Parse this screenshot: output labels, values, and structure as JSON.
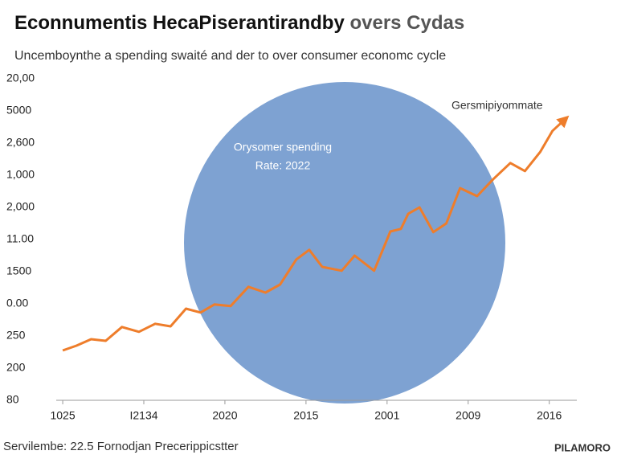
{
  "chart_data": {
    "type": "line",
    "title": "Econnumentis HecaPiserantirandby",
    "title_suffix": "overs Cydas",
    "subtitle": "Uncemboynthe a spending swaité and der to over consumer economc cycle",
    "annotation": "Gersmipiyommate",
    "circle_label": [
      "Orysomer spending",
      "Rate: 2022"
    ],
    "circle_color": "#7ea2d2",
    "source": "Servilembe: 22.5 Fornodjan Precerippicstter",
    "brand": "PILAMORO",
    "x": [
      0,
      0.17,
      0.35,
      0.53,
      0.73,
      0.94,
      1.14,
      1.33,
      1.52,
      1.7,
      1.87,
      2.07,
      2.29,
      2.5,
      2.68,
      2.88,
      3.04,
      3.2,
      3.44,
      3.6,
      3.84,
      4.04,
      4.17,
      4.26,
      4.4,
      4.57,
      4.73,
      4.9,
      5.11,
      5.31,
      5.52,
      5.7,
      5.89,
      6.04,
      6.19
    ],
    "series": [
      {
        "color": "#ee7d2b",
        "values": [
          1.55,
          1.7,
          1.9,
          1.85,
          2.28,
          2.13,
          2.38,
          2.3,
          2.85,
          2.73,
          2.98,
          2.93,
          3.53,
          3.35,
          3.6,
          4.38,
          4.68,
          4.15,
          4.03,
          4.5,
          4.03,
          5.25,
          5.33,
          5.8,
          6,
          5.23,
          5.5,
          6.6,
          6.35,
          6.88,
          7.38,
          7.13,
          7.73,
          8.38,
          8.73
        ]
      }
    ],
    "xlim": [
      -0.08,
      6.34
    ],
    "xticks": [
      {
        "value": 0,
        "label": "1025"
      },
      {
        "value": 1,
        "label": "I2134"
      },
      {
        "value": 2,
        "label": "2020"
      },
      {
        "value": 3,
        "label": "2015"
      },
      {
        "value": 4,
        "label": "2001"
      },
      {
        "value": 5,
        "label": "2009"
      },
      {
        "value": 6,
        "label": "2016"
      }
    ],
    "ylim": [
      0,
      10.3
    ],
    "yticks": [
      {
        "value": 0,
        "label": "80"
      },
      {
        "value": 1,
        "label": "200"
      },
      {
        "value": 2,
        "label": "250"
      },
      {
        "value": 3,
        "label": "0.00"
      },
      {
        "value": 4,
        "label": "1500"
      },
      {
        "value": 5,
        "label": "11.00"
      },
      {
        "value": 6,
        "label": "2,000"
      },
      {
        "value": 7,
        "label": "1,000"
      },
      {
        "value": 8,
        "label": "2,600"
      },
      {
        "value": 9,
        "label": "5000"
      },
      {
        "value": 10,
        "label": "20,00"
      }
    ]
  }
}
